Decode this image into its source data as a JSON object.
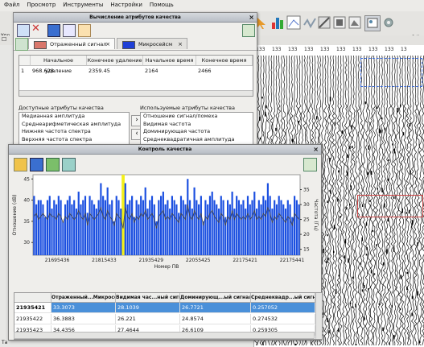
{
  "menu": [
    "Файл",
    "Просмотр",
    "Инструменты",
    "Настройки",
    "Помощь"
  ],
  "main": {
    "side_label_1": "Упр",
    "side_label_2": "Та",
    "seis_ticks": [
      "133",
      "133",
      "133",
      "133",
      "133",
      "133",
      "133",
      "133",
      "133",
      "13"
    ],
    "close_glyph": "×",
    "zoom_label": "а х"
  },
  "win1": {
    "title": "Вычисление атрибутов качества",
    "close": "×",
    "tabs": [
      {
        "label": "Отраженный сигнал",
        "color": "#d9776b"
      },
      {
        "label": "Микросейсм",
        "color": "#1e3fd6"
      }
    ],
    "tab_close": "×",
    "table": {
      "headers": [
        "Начальное удаление",
        "Конечное удаление",
        "Начальное время",
        "Конечное время"
      ],
      "row_num": "1",
      "row": [
        "968.628",
        "2359.45",
        "2164",
        "2466"
      ]
    },
    "available_label": "Доступные атрибуты качества",
    "used_label": "Используемые атрибуты качества",
    "available": [
      "Медианная амплитуда",
      "Среднеарифметическая амплитуда",
      "Нижняя частота спектра",
      "Верхняя частота спектра"
    ],
    "used": [
      "Отношение сигнал/помеха",
      "Видимая частота",
      "Доминирующая частота",
      "Среднеквадратичная амплитуда"
    ],
    "btn_right": "›",
    "btn_left": "‹"
  },
  "win2": {
    "title": "Контроль качества",
    "close": "×",
    "table": {
      "headers": [
        "",
        "Отраженный...Микросейсм",
        "Видимая час...ный сигнал",
        "Доминирующ...ый сигнал",
        "Среднеквадр...ый сигнал"
      ],
      "rows": [
        {
          "id": "21935421",
          "c1": "33.3073",
          "c2": "28.1039",
          "c3": "26.7721",
          "c4": "0.257052",
          "selected": true
        },
        {
          "id": "21935422",
          "c1": "36.3883",
          "c2": "26.221",
          "c3": "24.8574",
          "c4": "0.274532",
          "selected": false
        },
        {
          "id": "21935423",
          "c1": "34.4356",
          "c2": "27.4644",
          "c3": "26.6109",
          "c4": "0.259305",
          "selected": false
        }
      ]
    }
  },
  "chart_data": {
    "type": "bar",
    "xlabel": "Номер ПВ",
    "ylabel": "Отношение (dB)",
    "y2label": "Частота (Гц)",
    "xticks": [
      "21695436",
      "21815433",
      "21935429",
      "22055425",
      "22175421",
      "22175441"
    ],
    "ylim": [
      27,
      46
    ],
    "yticks": [
      30,
      35,
      40,
      45
    ],
    "y2lim": [
      13,
      40
    ],
    "y2ticks": [
      15,
      20,
      25,
      30,
      35
    ],
    "highlight_index": 40,
    "colors": {
      "bars": "#1b4fe0",
      "line": "#444444",
      "highlight": "#f3ef1a"
    },
    "series": [
      {
        "name": "bars",
        "values": [
          41,
          39,
          40,
          40,
          39,
          36,
          40,
          41,
          38,
          40,
          39,
          41,
          40,
          35,
          39,
          40,
          41,
          39,
          40,
          38,
          42,
          39,
          40,
          41,
          37,
          41,
          40,
          39,
          38,
          40,
          44,
          41,
          40,
          43,
          39,
          40,
          35,
          41,
          40,
          38,
          42,
          44,
          39,
          40,
          41,
          36,
          40,
          39,
          41,
          40,
          43,
          38,
          40,
          41,
          39,
          35,
          40,
          41,
          42,
          39,
          40,
          38,
          41,
          40,
          39,
          37,
          41,
          40,
          39,
          45,
          40,
          38,
          43,
          40,
          39,
          41,
          35,
          40,
          39,
          41,
          42,
          40,
          39,
          38,
          41,
          40,
          36,
          40,
          39,
          42,
          38,
          41,
          40,
          39,
          40,
          38,
          41,
          39,
          40,
          42,
          38,
          40,
          39,
          41,
          40,
          44,
          41,
          38,
          40,
          39,
          41,
          40,
          39,
          38,
          40,
          39,
          36,
          41,
          40,
          39
        ]
      },
      {
        "name": "line",
        "values": [
          26,
          27,
          25,
          26,
          27,
          26,
          25,
          27,
          26,
          26,
          25,
          27,
          26,
          24,
          26,
          25,
          27,
          26,
          25,
          26,
          28,
          26,
          25,
          27,
          23,
          27,
          26,
          25,
          26,
          27,
          29,
          26,
          25,
          28,
          26,
          25,
          23,
          27,
          26,
          25,
          22,
          29,
          26,
          25,
          27,
          24,
          26,
          25,
          27,
          26,
          28,
          25,
          26,
          27,
          25,
          22,
          26,
          27,
          28,
          25,
          26,
          25,
          27,
          26,
          25,
          24,
          27,
          26,
          25,
          30,
          26,
          25,
          28,
          26,
          25,
          27,
          23,
          26,
          25,
          27,
          28,
          26,
          25,
          24,
          27,
          26,
          23,
          26,
          25,
          28,
          25,
          27,
          26,
          25,
          26,
          25,
          27,
          25,
          26,
          28,
          25,
          26,
          25,
          27,
          26,
          29,
          27,
          24,
          26,
          25,
          27,
          26,
          25,
          24,
          26,
          25,
          23,
          27,
          26,
          25
        ]
      }
    ]
  }
}
